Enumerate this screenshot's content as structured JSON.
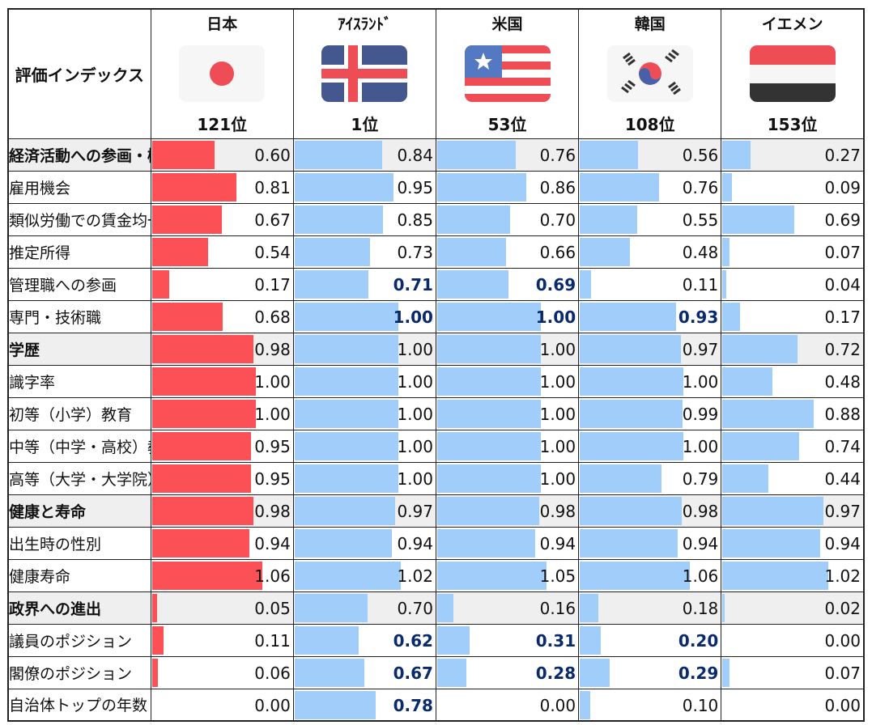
{
  "chart_data": {
    "type": "table",
    "header_label": "評価インデックス",
    "countries": [
      {
        "name": "日本",
        "rank": "121位",
        "flag": "japan-flag"
      },
      {
        "name": "ｱｲｽﾗﾝﾄﾞ",
        "rank": "1位",
        "flag": "iceland-flag"
      },
      {
        "name": "米国",
        "rank": "53位",
        "flag": "usa-flag"
      },
      {
        "name": "韓国",
        "rank": "108位",
        "flag": "korea-flag"
      },
      {
        "name": "イエメン",
        "rank": "153位",
        "flag": "yemen-flag"
      }
    ],
    "bar_max": 1.06,
    "colors": {
      "japan_bar": "#fb5156",
      "other_bar": "#a1cdfb",
      "category_bg": "#efefef",
      "highlight_text": "#0a2a6e"
    },
    "rows": [
      {
        "label": "経済活動への参画・機会",
        "category": true,
        "values": [
          "0.60",
          "0.84",
          "0.76",
          "0.56",
          "0.27"
        ],
        "bold": []
      },
      {
        "label": "雇用機会",
        "category": false,
        "values": [
          "0.81",
          "0.95",
          "0.86",
          "0.76",
          "0.09"
        ],
        "bold": []
      },
      {
        "label": "類似労働での賃金均一性",
        "category": false,
        "values": [
          "0.67",
          "0.85",
          "0.70",
          "0.55",
          "0.69"
        ],
        "bold": []
      },
      {
        "label": "推定所得",
        "category": false,
        "values": [
          "0.54",
          "0.73",
          "0.66",
          "0.48",
          "0.07"
        ],
        "bold": []
      },
      {
        "label": "管理職への参画",
        "category": false,
        "values": [
          "0.17",
          "0.71",
          "0.69",
          "0.11",
          "0.04"
        ],
        "bold": [
          1,
          2
        ]
      },
      {
        "label": "専門・技術職",
        "category": false,
        "values": [
          "0.68",
          "1.00",
          "1.00",
          "0.93",
          "0.17"
        ],
        "bold": [
          1,
          2,
          3
        ]
      },
      {
        "label": "学歴",
        "category": true,
        "values": [
          "0.98",
          "1.00",
          "1.00",
          "0.97",
          "0.72"
        ],
        "bold": []
      },
      {
        "label": "識字率",
        "category": false,
        "values": [
          "1.00",
          "1.00",
          "1.00",
          "1.00",
          "0.48"
        ],
        "bold": []
      },
      {
        "label": "初等（小学）教育",
        "category": false,
        "values": [
          "1.00",
          "1.00",
          "1.00",
          "0.99",
          "0.88"
        ],
        "bold": []
      },
      {
        "label": "中等（中学・高校）教育",
        "category": false,
        "values": [
          "0.95",
          "1.00",
          "1.00",
          "1.00",
          "0.74"
        ],
        "bold": []
      },
      {
        "label": "高等（大学・大学院）教育",
        "category": false,
        "values": [
          "0.95",
          "1.00",
          "1.00",
          "0.79",
          "0.44"
        ],
        "bold": []
      },
      {
        "label": "健康と寿命",
        "category": true,
        "values": [
          "0.98",
          "0.97",
          "0.98",
          "0.98",
          "0.97"
        ],
        "bold": []
      },
      {
        "label": "出生時の性別",
        "category": false,
        "values": [
          "0.94",
          "0.94",
          "0.94",
          "0.94",
          "0.94"
        ],
        "bold": []
      },
      {
        "label": "健康寿命",
        "category": false,
        "values": [
          "1.06",
          "1.02",
          "1.05",
          "1.06",
          "1.02"
        ],
        "bold": []
      },
      {
        "label": "政界への進出",
        "category": true,
        "values": [
          "0.05",
          "0.70",
          "0.16",
          "0.18",
          "0.02"
        ],
        "bold": []
      },
      {
        "label": "議員のポジション",
        "category": false,
        "values": [
          "0.11",
          "0.62",
          "0.31",
          "0.20",
          "0.00"
        ],
        "bold": [
          1,
          2,
          3
        ]
      },
      {
        "label": "閣僚のポジション",
        "category": false,
        "values": [
          "0.06",
          "0.67",
          "0.28",
          "0.29",
          "0.07"
        ],
        "bold": [
          1,
          2,
          3
        ]
      },
      {
        "label": "自治体トップの年数",
        "category": false,
        "values": [
          "0.00",
          "0.78",
          "0.00",
          "0.10",
          "0.00"
        ],
        "bold": [
          1
        ]
      }
    ]
  }
}
